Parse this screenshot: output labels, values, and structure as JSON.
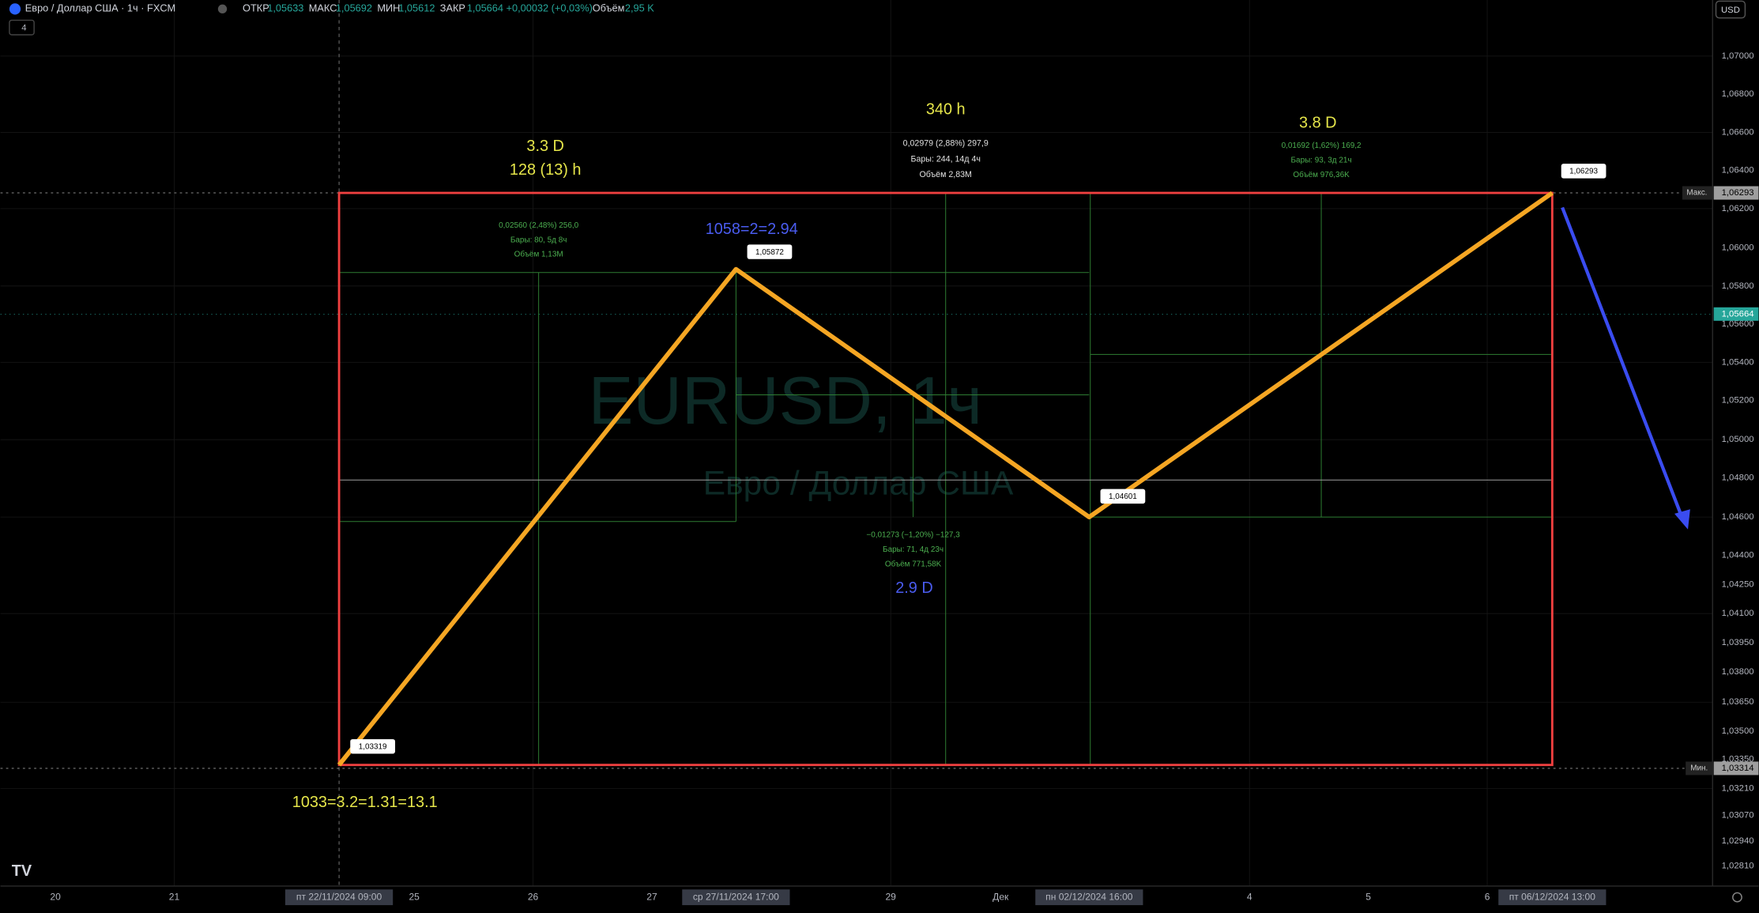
{
  "header": {
    "symbol": "Евро / Доллар США · 1ч · FXCM",
    "ohlc": [
      {
        "label": "ОТКР",
        "value": "1,05633"
      },
      {
        "label": "МАКС",
        "value": "1,05692"
      },
      {
        "label": "МИН",
        "value": "1,05612"
      },
      {
        "label": "ЗАКР",
        "value": "1,05664 +0,00032 (+0,03%)"
      }
    ],
    "volume": {
      "label": "Объём",
      "value": "2,95 K"
    },
    "badge": "4"
  },
  "watermark": {
    "symbol": "EURUSD, 1ч",
    "name": "Евро / Доллар США"
  },
  "annotations": [
    "3.3 D",
    "128 (13) h",
    "340 h",
    "3.8 D",
    "1058=2=2.94",
    "2.9 D",
    "1033=3.2=1.31=13.1"
  ],
  "measures": [
    [
      "0,02560 (2,48%) 256,0",
      "Бары: 80, 5д 8ч",
      "Объём 1,13M"
    ],
    [
      "0,02979 (2,88%) 297,9",
      "Бары: 244, 14д 4ч",
      "Объём 2,83M"
    ],
    [
      "0,01692 (1,62%) 169,2",
      "Бары: 93, 3д 21ч",
      "Объём 976,36K"
    ],
    [
      "−0,01273 (−1,20%) −127,3",
      "Бары: 71, 4д 23ч",
      "Объём 771,58K"
    ]
  ],
  "points": [
    "1,03319",
    "1,05872",
    "1,04601",
    "1,06293"
  ],
  "price_axis": {
    "currency": "USD",
    "max": "1,06293",
    "max_tag": "Макс.",
    "last": "1,05664",
    "min": "1,03314",
    "min_tag": "Мин.",
    "labels": [
      "1,07000",
      "1,06800",
      "1,06600",
      "1,06400",
      "1,06200",
      "1,06000",
      "1,05800",
      "1,05600",
      "1,05400",
      "1,05200",
      "1,05000",
      "1,04800",
      "1,04600",
      "1,04400",
      "1,04250",
      "1,04100",
      "1,03950",
      "1,03800",
      "1,03650",
      "1,03500",
      "1,03350",
      "1,03210",
      "1,03070",
      "1,02940",
      "1,02810"
    ]
  },
  "time_axis": {
    "labels": [
      "20",
      "21",
      "пт 22/11/2024   09:00",
      "25",
      "26",
      "27",
      "ср 27/11/2024   17:00",
      "29",
      "Дек",
      "пн 02/12/2024   16:00",
      "4",
      "5",
      "6",
      "пт 06/12/2024   13:00"
    ]
  }
}
